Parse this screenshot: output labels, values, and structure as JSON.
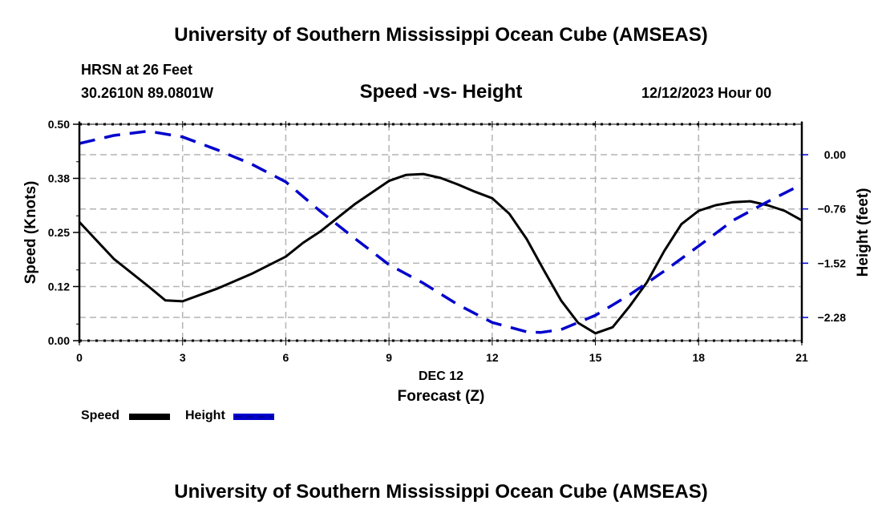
{
  "header": {
    "title": "University of Southern Mississippi Ocean Cube (AMSEAS)",
    "station": "HRSN at 26 Feet",
    "coords": "30.2610N  89.0801W",
    "datetime": "12/12/2023 Hour 00"
  },
  "footer": {
    "title": "University of Southern Mississippi Ocean Cube (AMSEAS)"
  },
  "legend": {
    "speed_label": "Speed",
    "height_label": "Height"
  },
  "colors": {
    "speed": "#000000",
    "height": "#0000cc",
    "grid": "#b4b4b4"
  },
  "chart_data": {
    "type": "line",
    "title": "Speed -vs- Height",
    "xlabel": "Forecast (Z)",
    "xsublabel": "DEC 12",
    "ylabel": "Speed (Knots)",
    "y2label": "Height (feet)",
    "xlim": [
      0,
      21
    ],
    "ylim": [
      0,
      0.5
    ],
    "y2lim": [
      -2.605,
      0.427
    ],
    "xticks": [
      0,
      3,
      6,
      9,
      12,
      15,
      18,
      21
    ],
    "xtick_labels": [
      "0",
      "3",
      "6",
      "9",
      "12",
      "15",
      "18",
      "21"
    ],
    "yticks": [
      0,
      0.125,
      0.25,
      0.375,
      0.5
    ],
    "ytick_labels": [
      "0.00",
      "0.12",
      "0.25",
      "0.38",
      "0.50"
    ],
    "y2ticks": [
      0,
      -0.76,
      -1.52,
      -2.28
    ],
    "y2tick_labels": [
      "0.00",
      "−0.76",
      "−1.52",
      "−2.28"
    ],
    "grid": true,
    "legend_position": "bottom-left",
    "series": [
      {
        "name": "Speed",
        "axis": "left",
        "style": "solid",
        "x": [
          0,
          1,
          2,
          2.5,
          3,
          4,
          5,
          6,
          6.5,
          7,
          8,
          9,
          9.5,
          10,
          10.5,
          11,
          11.5,
          12,
          12.5,
          13,
          13.5,
          14,
          14.5,
          15,
          15.5,
          16,
          16.5,
          17,
          17.5,
          18,
          18.5,
          19,
          19.5,
          20,
          20.5,
          21
        ],
        "values": [
          0.274,
          0.189,
          0.126,
          0.093,
          0.091,
          0.12,
          0.154,
          0.194,
          0.226,
          0.252,
          0.315,
          0.369,
          0.383,
          0.385,
          0.376,
          0.361,
          0.344,
          0.329,
          0.293,
          0.235,
          0.163,
          0.093,
          0.041,
          0.017,
          0.031,
          0.08,
          0.135,
          0.207,
          0.269,
          0.3,
          0.313,
          0.32,
          0.322,
          0.313,
          0.3,
          0.278
        ]
      },
      {
        "name": "Height",
        "axis": "right",
        "style": "dashed",
        "x": [
          0,
          1,
          2,
          3,
          4,
          5,
          6,
          7,
          8,
          9,
          10,
          11,
          12,
          13,
          13.4,
          14,
          15,
          16,
          17,
          18,
          19,
          20,
          21
        ],
        "values": [
          0.157,
          0.27,
          0.33,
          0.25,
          0.07,
          -0.13,
          -0.38,
          -0.79,
          -1.17,
          -1.54,
          -1.8,
          -2.1,
          -2.35,
          -2.48,
          -2.49,
          -2.45,
          -2.25,
          -1.96,
          -1.63,
          -1.28,
          -0.92,
          -0.66,
          -0.415
        ]
      }
    ]
  }
}
